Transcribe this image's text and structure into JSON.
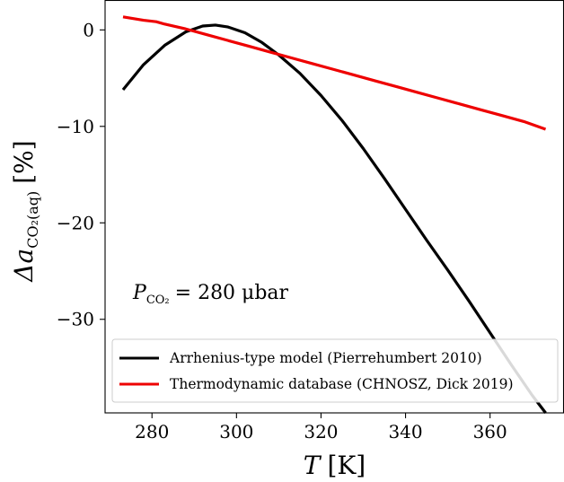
{
  "chart_data": {
    "type": "line",
    "xlabel_main": "T",
    "xlabel_unit": "[K]",
    "ylabel_main": "Δa",
    "ylabel_sub": "CO₂(aq)",
    "ylabel_unit": "[%]",
    "xlim": [
      268.9,
      377.5
    ],
    "ylim": [
      -39.7,
      3.1
    ],
    "xticks": [
      280,
      300,
      320,
      340,
      360
    ],
    "yticks": [
      0,
      -10,
      -20,
      -30
    ],
    "grid": false,
    "legend_position": "lower-right",
    "annotation": {
      "lhs": "P",
      "lhs_sub": "CO₂",
      "rhs": "= 280 μbar"
    },
    "series": [
      {
        "name": "Arrhenius-type model (Pierrehumbert 2010)",
        "color": "#000000",
        "x": [
          273.15,
          278,
          283,
          288,
          292,
          295,
          298,
          302,
          306,
          310,
          315,
          320,
          325,
          330,
          335,
          340,
          345,
          350,
          355,
          360,
          365,
          370,
          373.15
        ],
        "y": [
          -6.2,
          -3.6,
          -1.6,
          -0.2,
          0.4,
          0.5,
          0.3,
          -0.3,
          -1.3,
          -2.6,
          -4.5,
          -6.8,
          -9.4,
          -12.3,
          -15.4,
          -18.6,
          -21.8,
          -24.9,
          -28.1,
          -31.4,
          -34.7,
          -37.9,
          -39.7
        ]
      },
      {
        "name": "Thermodynamic database (CHNOSZ, Dick 2019)",
        "color": "#ee0000",
        "x": [
          273.15,
          278,
          281,
          283,
          288,
          293,
          298,
          303,
          308,
          313,
          318,
          323,
          328,
          333,
          338,
          343,
          348,
          353,
          358,
          363,
          368,
          373.15
        ],
        "y": [
          1.35,
          1.0,
          0.85,
          0.6,
          0.1,
          -0.5,
          -1.1,
          -1.7,
          -2.3,
          -2.9,
          -3.5,
          -4.1,
          -4.7,
          -5.3,
          -5.9,
          -6.5,
          -7.1,
          -7.7,
          -8.3,
          -8.9,
          -9.5,
          -10.3
        ]
      }
    ]
  }
}
